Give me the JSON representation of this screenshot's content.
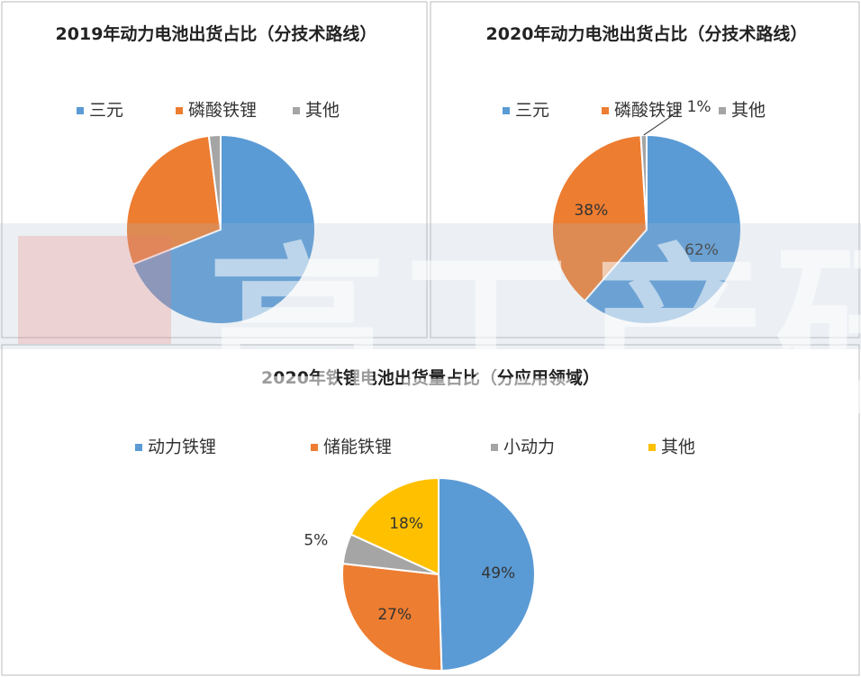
{
  "chart_data": [
    {
      "type": "pie",
      "title": "2019年动力电池出货占比（分技术路线）",
      "categories": [
        "三元",
        "磷酸铁锂",
        "其他"
      ],
      "values": [
        69,
        29,
        2
      ],
      "colors": [
        "#5b9bd5",
        "#ed7d31",
        "#a5a5a5"
      ]
    },
    {
      "type": "pie",
      "title": "2020年动力电池出货占比（分技术路线）",
      "categories": [
        "三元",
        "磷酸铁锂",
        "其他"
      ],
      "values": [
        62,
        38,
        1
      ],
      "value_labels": [
        "62%",
        "38%",
        "1%"
      ],
      "colors": [
        "#5b9bd5",
        "#ed7d31",
        "#a5a5a5"
      ]
    },
    {
      "type": "pie",
      "title": "2020年铁锂电池出货量占比（分应用领域）",
      "categories": [
        "动力铁锂",
        "储能铁锂",
        "小动力",
        "其他"
      ],
      "values": [
        49,
        27,
        5,
        18
      ],
      "value_labels": [
        "49%",
        "27%",
        "5%",
        "18%"
      ],
      "colors": [
        "#5b9bd5",
        "#ed7d31",
        "#a5a5a5",
        "#ffc000"
      ]
    }
  ],
  "watermark": "高工产研"
}
